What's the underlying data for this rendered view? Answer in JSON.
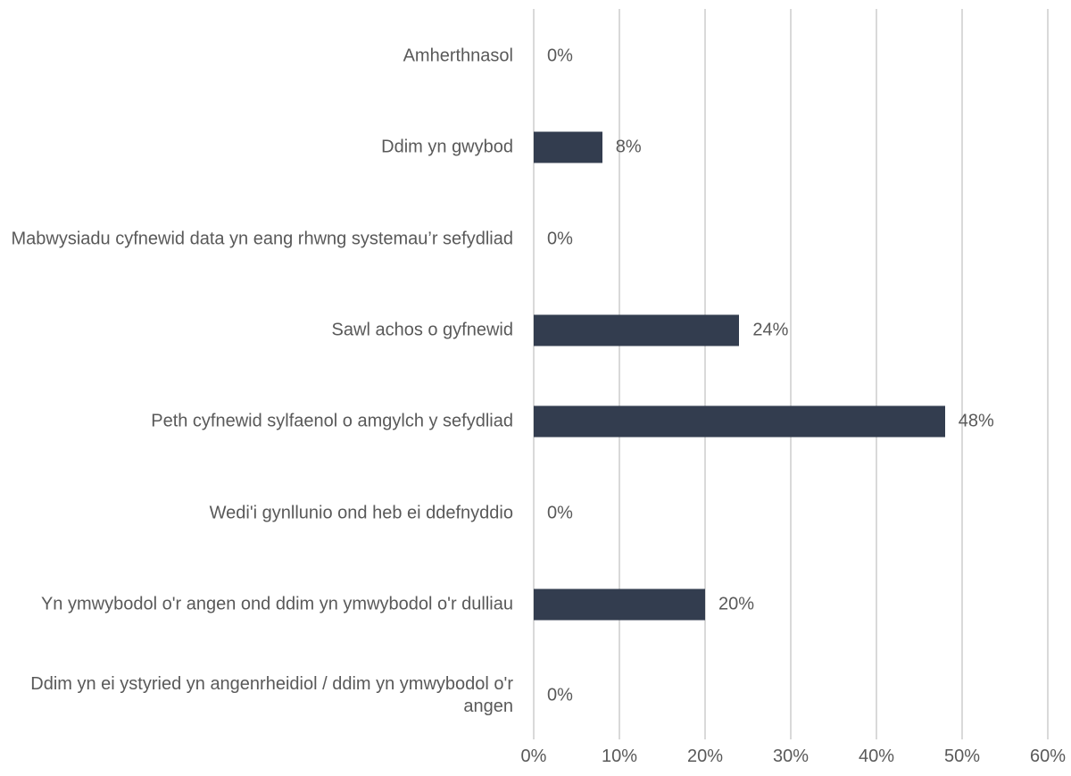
{
  "chart_data": {
    "type": "bar",
    "orientation": "horizontal",
    "categories": [
      "Amherthnasol",
      "Ddim yn gwybod",
      "Mabwysiadu cyfnewid data yn eang rhwng systemau’r sefydliad",
      "Sawl achos o gyfnewid",
      "Peth cyfnewid sylfaenol o amgylch y sefydliad",
      "Wedi'i gynllunio ond heb ei ddefnyddio",
      "Yn ymwybodol o'r angen ond ddim yn ymwybodol o'r dulliau",
      "Ddim yn ei ystyried yn angenrheidiol / ddim yn ymwybodol o'r angen"
    ],
    "values": [
      0,
      8,
      0,
      24,
      48,
      0,
      20,
      0
    ],
    "value_labels": [
      "0%",
      "8%",
      "0%",
      "24%",
      "48%",
      "0%",
      "20%",
      "0%"
    ],
    "color": "#333d4f",
    "xlim": [
      0,
      60
    ],
    "xticks": [
      {
        "value": 0,
        "label": "0%"
      },
      {
        "value": 10,
        "label": "10%"
      },
      {
        "value": 20,
        "label": "20%"
      },
      {
        "value": 30,
        "label": "30%"
      },
      {
        "value": 40,
        "label": "40%"
      },
      {
        "value": 50,
        "label": "50%"
      },
      {
        "value": 60,
        "label": "60%"
      }
    ],
    "grid": true
  }
}
